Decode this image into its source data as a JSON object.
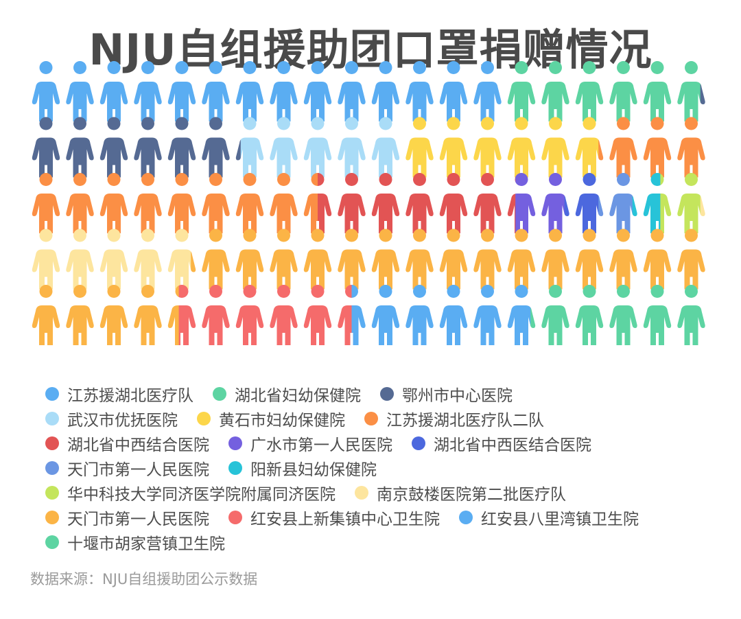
{
  "chart_data": {
    "type": "pictogram",
    "title": "NJU自组援助团口罩捐赠情况",
    "series": [
      {
        "name": "江苏援湖北医疗队",
        "value": 14.0,
        "color": "#5aadf2"
      },
      {
        "name": "湖北省妇幼保健院",
        "value": 5.8,
        "color": "#5dd4a2"
      },
      {
        "name": "鄂州市中心医院",
        "value": 6.4,
        "color": "#556a93"
      },
      {
        "name": "武汉市优抚医院",
        "value": 4.8,
        "color": "#a9dcf7"
      },
      {
        "name": "黄石市妇幼保健院",
        "value": 5.8,
        "color": "#fcd64a"
      },
      {
        "name": "江苏援湖北医疗队二队",
        "value": 11.7,
        "color": "#fb8f45"
      },
      {
        "name": "湖北省中西结合医院",
        "value": 5.8,
        "color": "#e25454"
      },
      {
        "name": "广水市第一人民医院",
        "value": 1.5,
        "color": "#7460df"
      },
      {
        "name": "湖北省中西医结合医院",
        "value": 1.0,
        "color": "#4c68de"
      },
      {
        "name": "天门市第一人民医院",
        "value": 1.0,
        "color": "#6b96e3"
      },
      {
        "name": "阳新县妇幼保健院",
        "value": 0.8,
        "color": "#27c3d8"
      },
      {
        "name": "华中科技大学同济医学院附属同济医院",
        "value": 1.2,
        "color": "#c4e55c"
      },
      {
        "name": "南京鼓楼医院第二批医疗队",
        "value": 5.0,
        "color": "#fde59e"
      },
      {
        "name": "天门市第一人民医院",
        "value": 19.6,
        "color": "#fbb446"
      },
      {
        "name": "红安县上新集镇中心卫生院",
        "value": 5.1,
        "color": "#f56b6b"
      },
      {
        "name": "红安县八里湾镇卫生院",
        "value": 5.3,
        "color": "#5aadf2"
      },
      {
        "name": "十堰市胡家营镇卫生院",
        "value": 5.2,
        "color": "#5dd4a2"
      }
    ],
    "grid": {
      "rows": 5,
      "cols": 20
    }
  },
  "source": "数据来源：NJU自组援助团公示数据"
}
